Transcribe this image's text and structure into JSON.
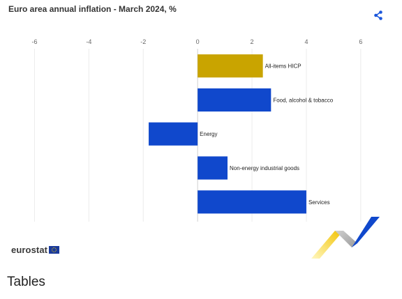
{
  "chart_data": {
    "type": "bar",
    "orientation": "horizontal",
    "title": "Euro area annual inflation - March  2024, %",
    "categories": [
      "All-items HICP",
      "Food, alcohol & tobacco",
      "Energy",
      "Non-energy industrial goods",
      "Services"
    ],
    "values": [
      2.4,
      2.7,
      -1.8,
      1.1,
      4.0
    ],
    "bar_colors": [
      "#c9a400",
      "#1048cc",
      "#1048cc",
      "#1048cc",
      "#1048cc"
    ],
    "xlim": [
      -6.5,
      6.8
    ],
    "xticks": [
      -6,
      -4,
      -2,
      0,
      2,
      4,
      6
    ],
    "grid": true,
    "legend": "none"
  },
  "header": {
    "share_icon": "share-icon"
  },
  "footer": {
    "brand": "eurostat"
  },
  "sections": {
    "tables_heading": "Tables"
  },
  "colors": {
    "accent": "#1048cc",
    "highlight": "#c9a400"
  }
}
